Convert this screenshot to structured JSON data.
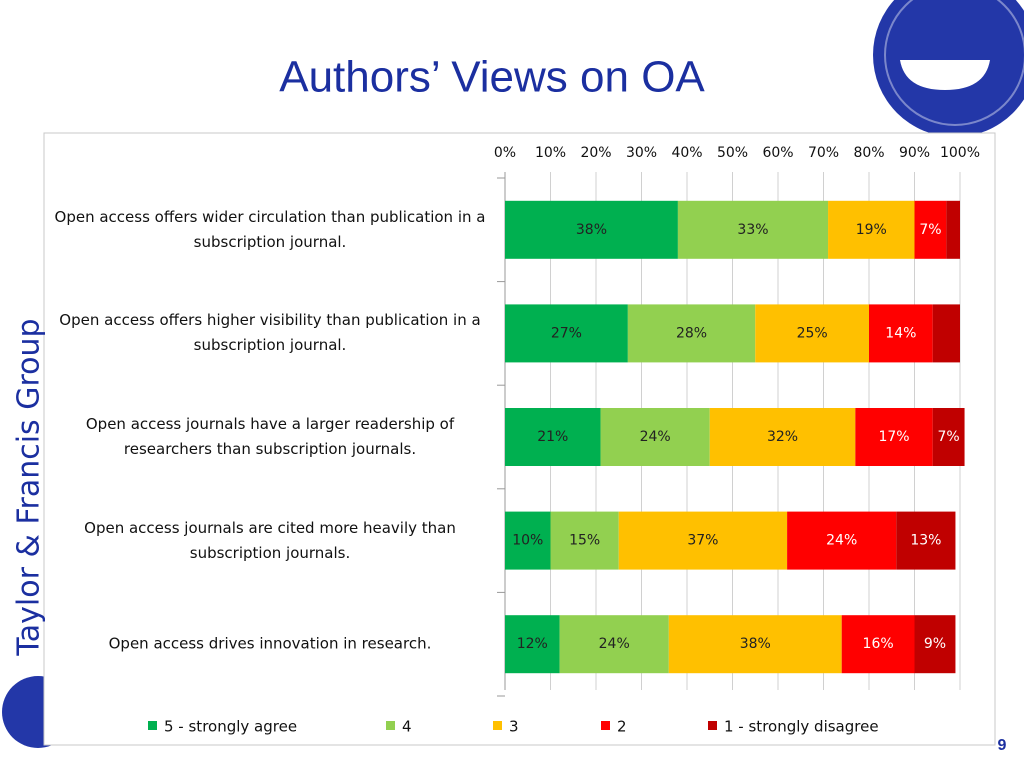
{
  "slide": {
    "title": "Authors’ Views on OA",
    "brand": "Taylor & Francis Group",
    "page_number": "9"
  },
  "chart_data": {
    "type": "stacked_bar_horizontal",
    "categories": [
      "Open access offers wider circulation than publication in a subscription journal.",
      "Open access offers higher visibility than publication in a subscription journal.",
      "Open access journals have a larger readership of researchers than subscription journals.",
      "Open access journals are cited more heavily than subscription journals.",
      "Open access drives innovation in research."
    ],
    "series": [
      {
        "name": "5 - strongly agree",
        "color": "#00b050",
        "values": [
          38,
          27,
          21,
          10,
          12
        ],
        "value_labels": [
          "38%",
          "27%",
          "21%",
          "10%",
          "12%"
        ]
      },
      {
        "name": "4",
        "color": "#92d050",
        "values": [
          33,
          28,
          24,
          15,
          24
        ],
        "value_labels": [
          "33%",
          "28%",
          "24%",
          "15%",
          "24%"
        ]
      },
      {
        "name": "3",
        "color": "#ffc000",
        "values": [
          19,
          25,
          32,
          37,
          38
        ],
        "value_labels": [
          "19%",
          "25%",
          "32%",
          "37%",
          "38%"
        ]
      },
      {
        "name": "2",
        "color": "#ff0000",
        "values": [
          7,
          14,
          17,
          24,
          16
        ],
        "value_labels": [
          "7%",
          "14%",
          "17%",
          "24%",
          "16%"
        ]
      },
      {
        "name": "1 - strongly disagree",
        "color": "#c00000",
        "values": [
          3,
          6,
          7,
          13,
          9
        ],
        "value_labels": [
          null,
          null,
          "7%",
          "13%",
          "9%"
        ]
      }
    ],
    "xlim": [
      0,
      100
    ],
    "xticks": [
      {
        "value": 0,
        "label": "0%"
      },
      {
        "value": 10,
        "label": "10%"
      },
      {
        "value": 20,
        "label": "20%"
      },
      {
        "value": 30,
        "label": "30%"
      },
      {
        "value": 40,
        "label": "40%"
      },
      {
        "value": 50,
        "label": "50%"
      },
      {
        "value": 60,
        "label": "60%"
      },
      {
        "value": 70,
        "label": "70%"
      },
      {
        "value": 80,
        "label": "80%"
      },
      {
        "value": 90,
        "label": "90%"
      },
      {
        "value": 100,
        "label": "100%"
      }
    ],
    "grid": true,
    "legend": "bottom"
  }
}
